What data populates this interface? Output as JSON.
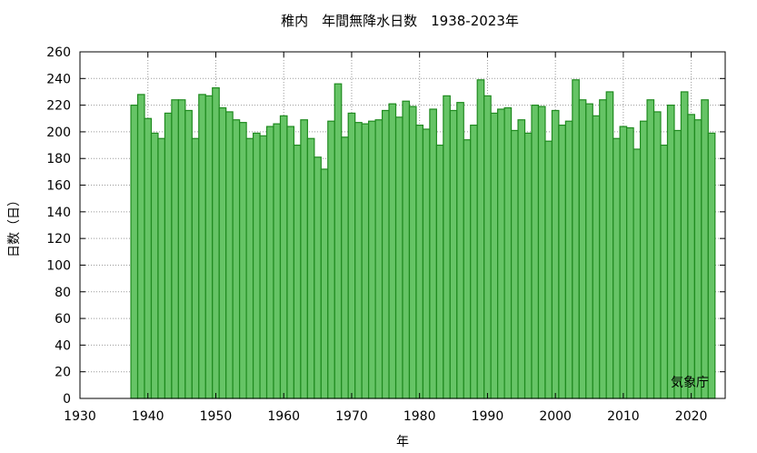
{
  "chart_data": {
    "type": "bar",
    "title": "稚内　年間無降水日数　1938-2023年",
    "xlabel": "年",
    "ylabel": "日数（日）",
    "credit": "気象庁",
    "xlim": [
      1930,
      2025
    ],
    "ylim": [
      0,
      260
    ],
    "x_ticks": [
      1930,
      1940,
      1950,
      1960,
      1970,
      1980,
      1990,
      2000,
      2010,
      2020
    ],
    "y_ticks": [
      0,
      20,
      40,
      60,
      80,
      100,
      120,
      140,
      160,
      180,
      200,
      220,
      240,
      260
    ],
    "grid": true,
    "bar_fill": "#66c466",
    "bar_stroke": "#1f8a1f",
    "years": [
      1938,
      1939,
      1940,
      1941,
      1942,
      1943,
      1944,
      1945,
      1946,
      1947,
      1948,
      1949,
      1950,
      1951,
      1952,
      1953,
      1954,
      1955,
      1956,
      1957,
      1958,
      1959,
      1960,
      1961,
      1962,
      1963,
      1964,
      1965,
      1966,
      1967,
      1968,
      1969,
      1970,
      1971,
      1972,
      1973,
      1974,
      1975,
      1976,
      1977,
      1978,
      1979,
      1980,
      1981,
      1982,
      1983,
      1984,
      1985,
      1986,
      1987,
      1988,
      1989,
      1990,
      1991,
      1992,
      1993,
      1994,
      1995,
      1996,
      1997,
      1998,
      1999,
      2000,
      2001,
      2002,
      2003,
      2004,
      2005,
      2006,
      2007,
      2008,
      2009,
      2010,
      2011,
      2012,
      2013,
      2014,
      2015,
      2016,
      2017,
      2018,
      2019,
      2020,
      2021,
      2022,
      2023
    ],
    "values": [
      220,
      228,
      210,
      199,
      195,
      214,
      224,
      224,
      216,
      195,
      228,
      227,
      233,
      218,
      215,
      209,
      207,
      195,
      199,
      197,
      204,
      206,
      212,
      204,
      190,
      209,
      195,
      181,
      172,
      208,
      236,
      196,
      214,
      207,
      206,
      208,
      209,
      216,
      221,
      211,
      223,
      219,
      205,
      202,
      217,
      190,
      227,
      216,
      222,
      194,
      205,
      239,
      227,
      214,
      217,
      218,
      201,
      209,
      199,
      220,
      219,
      193,
      216,
      205,
      208,
      239,
      224,
      221,
      212,
      224,
      230,
      195,
      204,
      203,
      187,
      208,
      224,
      215,
      190,
      220,
      201,
      230,
      213,
      209,
      224,
      199
    ]
  }
}
